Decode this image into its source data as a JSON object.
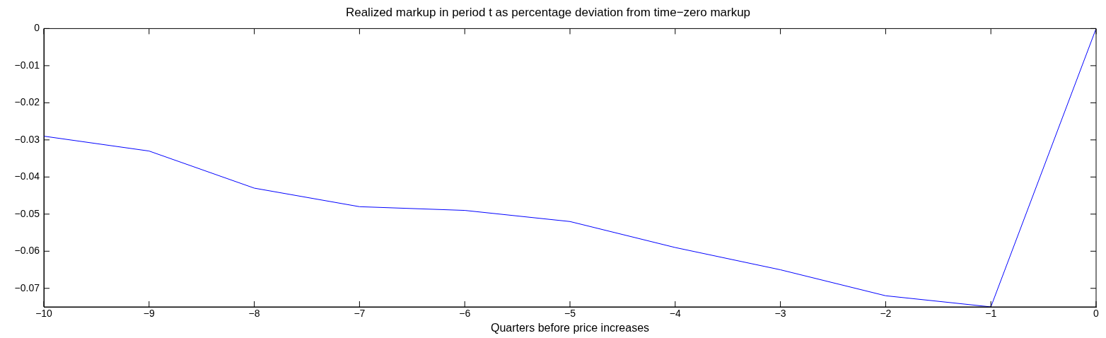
{
  "chart_data": {
    "type": "line",
    "title": "Realized markup in period t as percentage deviation from time−zero markup",
    "xlabel": "Quarters before price increases",
    "x": [
      -10,
      -9,
      -8,
      -7,
      -6,
      -5,
      -4,
      -3,
      -2,
      -1,
      0
    ],
    "series": [
      {
        "color": "#0000ff",
        "values": [
          -0.029,
          -0.033,
          -0.043,
          -0.048,
          -0.049,
          -0.052,
          -0.059,
          -0.065,
          -0.072,
          -0.075,
          0
        ]
      }
    ],
    "xlim": [
      -10,
      0
    ],
    "xticks": [
      -10,
      -9,
      -8,
      -7,
      -6,
      -5,
      -4,
      -3,
      -2,
      -1,
      0
    ],
    "ylim": [
      -0.075,
      0
    ],
    "yticks": [
      -0.07,
      -0.06,
      -0.05,
      -0.04,
      -0.03,
      -0.02,
      -0.01,
      0
    ],
    "grid": false,
    "legend": false,
    "marker": "none",
    "line_style": "solid"
  }
}
